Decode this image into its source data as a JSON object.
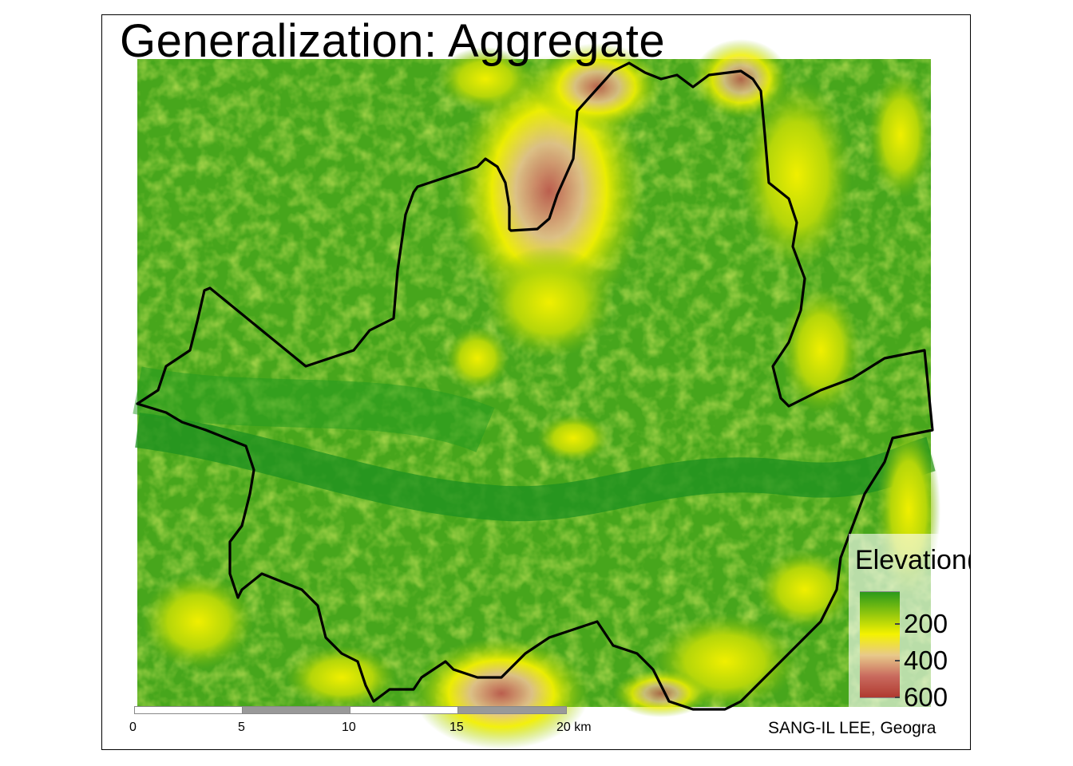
{
  "title": "Generalization: Aggregate",
  "legend": {
    "title": "Elevation(m)",
    "labels": [
      "200",
      "400",
      "600"
    ],
    "colors": [
      "#2a9a1a",
      "#8ec50e",
      "#f4f200",
      "#e8c98a",
      "#c96a5e",
      "#b03a30"
    ]
  },
  "scale_bar": {
    "labels": [
      "0",
      "5",
      "10",
      "15",
      "20 km"
    ],
    "segment_colors": [
      "#ffffff",
      "#999999",
      "#ffffff",
      "#999999"
    ]
  },
  "credit": "SANG-IL LEE, Geogra",
  "colors": {
    "lowland": "#1f9a1f",
    "mid": "#8cc81a",
    "high": "#f2f200",
    "peak": "#bb5a4e",
    "boundary": "#000000"
  }
}
